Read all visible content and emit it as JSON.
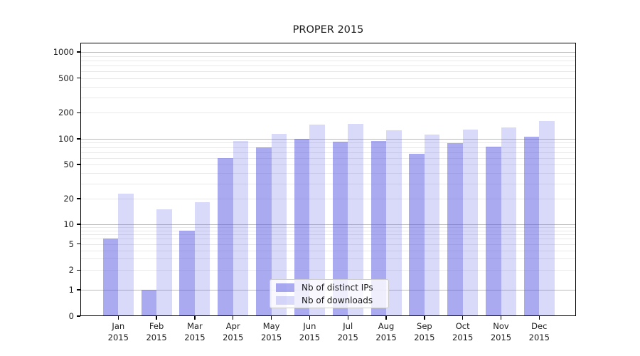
{
  "chart_data": {
    "type": "bar",
    "title": "PROPER 2015",
    "categories": [
      "Jan 2015",
      "Feb 2015",
      "Mar 2015",
      "Apr 2015",
      "May 2015",
      "Jun 2015",
      "Jul 2015",
      "Aug 2015",
      "Sep 2015",
      "Oct 2015",
      "Nov 2015",
      "Dec 2015"
    ],
    "series": [
      {
        "name": "Nb of distinct IPs",
        "color": "#5555e1",
        "alpha": 0.5,
        "solid_hex": "#aaaaf0",
        "values": [
          6,
          1,
          8,
          60,
          80,
          100,
          93,
          95,
          67,
          89,
          81,
          106
        ]
      },
      {
        "name": "Nb of downloads",
        "color": "#6868ea",
        "alpha": 0.25,
        "solid_hex": "#d9d9fa",
        "values": [
          23,
          15,
          18,
          95,
          114,
          146,
          150,
          125,
          112,
          128,
          135,
          160
        ]
      }
    ],
    "yscale": "symlog",
    "ylim": [
      0,
      1300
    ],
    "yticks": [
      1000,
      500,
      200,
      100,
      50,
      20,
      10,
      5,
      2,
      1,
      0
    ],
    "major_gridlines": [
      1,
      10,
      100,
      1000
    ],
    "minor_gridlines": [
      2,
      3,
      4,
      5,
      6,
      7,
      8,
      9,
      20,
      30,
      40,
      50,
      60,
      70,
      80,
      90,
      200,
      300,
      400,
      500,
      600,
      700,
      800,
      900
    ],
    "grid": true,
    "legend_position": "lower center",
    "xlabel": "",
    "ylabel": "",
    "colors": {
      "major_grid": "#bbbbbb",
      "minor_grid": "#e9e9e9",
      "axis": "#000000",
      "text": "#1a1a1a",
      "background": "#ffffff"
    }
  }
}
